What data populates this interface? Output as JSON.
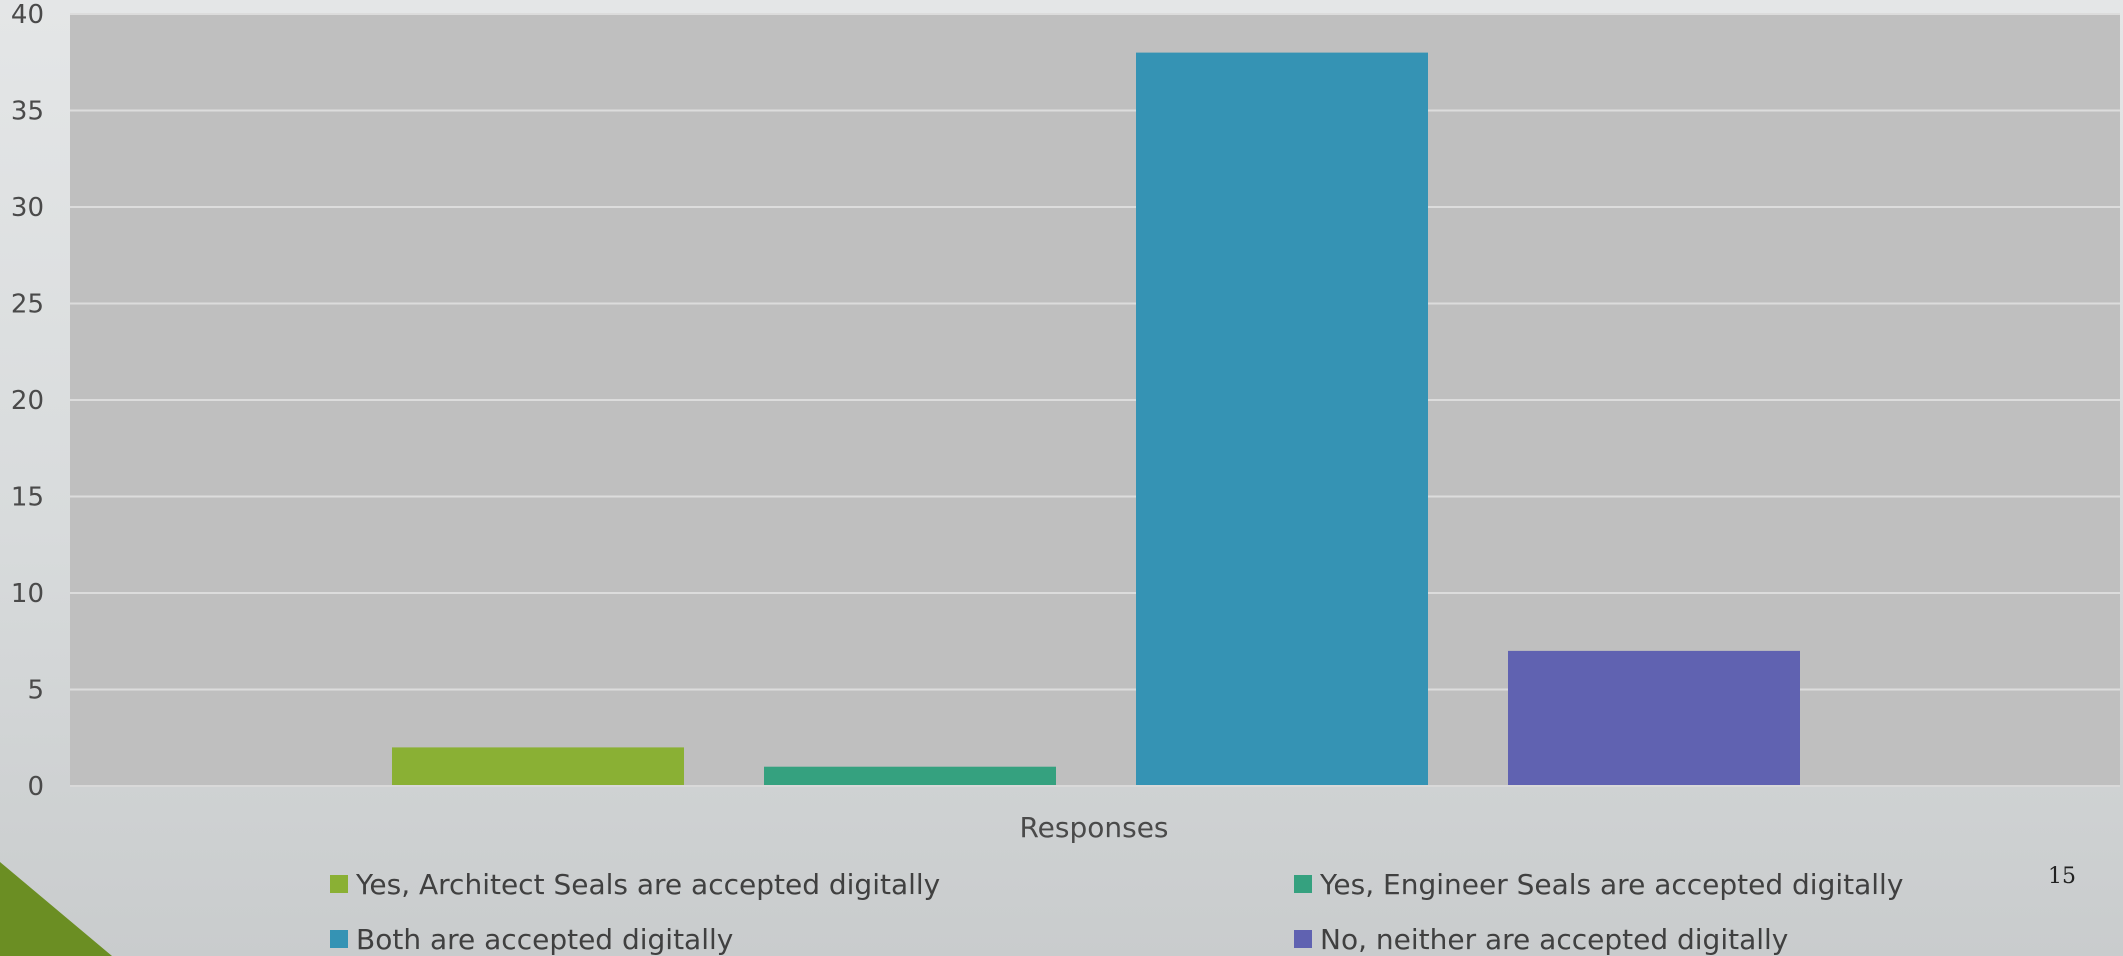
{
  "chart_data": {
    "type": "bar",
    "xlabel": "Responses",
    "ylim": [
      0,
      40
    ],
    "yticks": [
      0,
      5,
      10,
      15,
      20,
      25,
      30,
      35,
      40
    ],
    "grid": true,
    "legend_position": "bottom",
    "series": [
      {
        "name": "Yes, Architect Seals are accepted digitally",
        "value": 2,
        "color": "#8ab034"
      },
      {
        "name": "Yes, Engineer Seals are accepted digitally",
        "value": 1,
        "color": "#35a17f"
      },
      {
        "name": "Both are accepted digitally",
        "value": 38,
        "color": "#3593b4"
      },
      {
        "name": "No, neither are accepted digitally",
        "value": 7,
        "color": "#6062b1"
      }
    ]
  },
  "page_number": "15",
  "colors": {
    "plot_background": "#bfbfbf",
    "gridline": "#dcdcdc",
    "corner_accent": "#6b8e23"
  }
}
